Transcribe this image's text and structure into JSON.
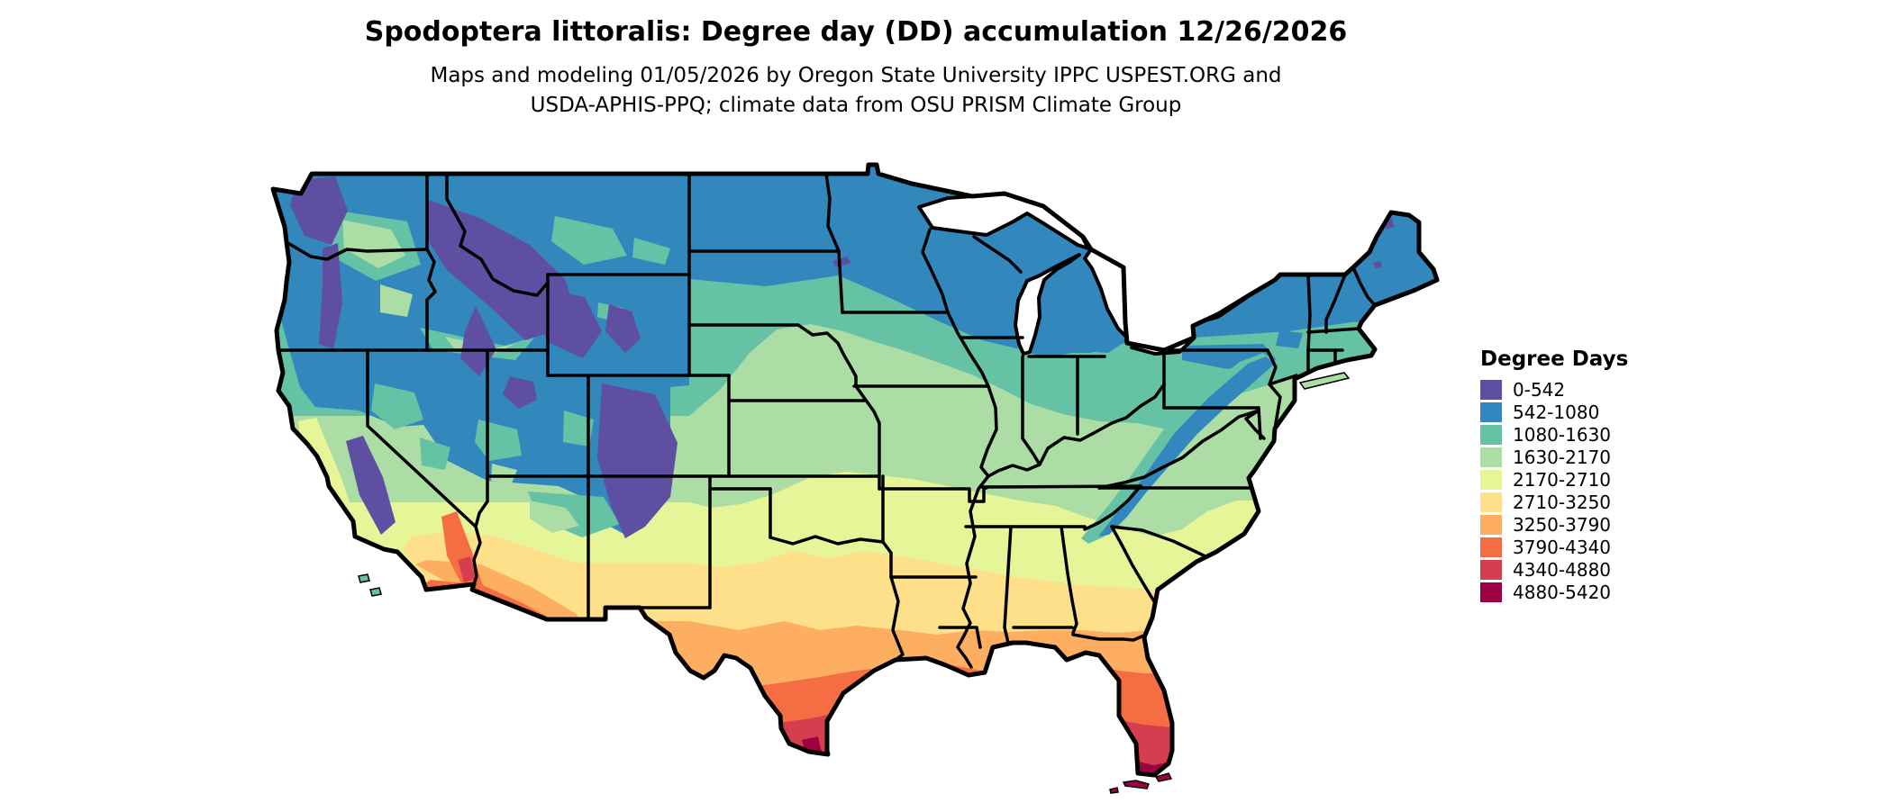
{
  "header": {
    "title": "Spodoptera littoralis: Degree day (DD) accumulation 12/26/2026",
    "subtitle_line1": "Maps and modeling 01/05/2026 by Oregon State University IPPC USPEST.ORG and",
    "subtitle_line2": "USDA-APHIS-PPQ; climate data from OSU PRISM Climate Group"
  },
  "legend": {
    "title": "Degree Days",
    "entries": [
      {
        "label": "0-542",
        "color": "#5e4fa2"
      },
      {
        "label": "542-1080",
        "color": "#3288bd"
      },
      {
        "label": "1080-1630",
        "color": "#66c2a5"
      },
      {
        "label": "1630-2170",
        "color": "#abdda4"
      },
      {
        "label": "2170-2710",
        "color": "#e6f598"
      },
      {
        "label": "2710-3250",
        "color": "#fee08b"
      },
      {
        "label": "3250-3790",
        "color": "#fdae61"
      },
      {
        "label": "3790-4340",
        "color": "#f46d43"
      },
      {
        "label": "4340-4880",
        "color": "#d53e4f"
      },
      {
        "label": "4880-5420",
        "color": "#9e0142"
      }
    ]
  },
  "map": {
    "name": "Continental United States degree-day accumulation map",
    "model_species": "Spodoptera littoralis",
    "map_date": "12/26/2026",
    "units": "Degree Days"
  }
}
